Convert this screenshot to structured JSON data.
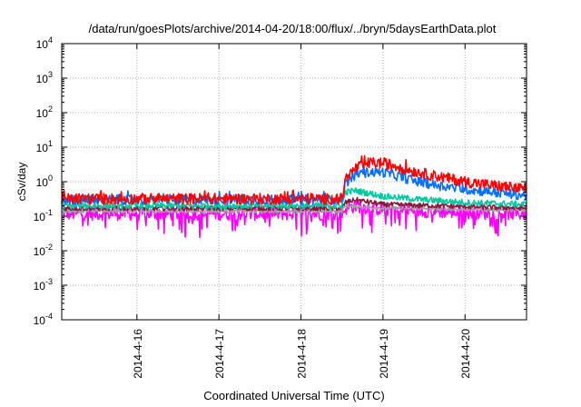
{
  "chart_data": {
    "type": "line",
    "title": "/data/run/goesPlots/archive/2014-04-20/18:00/flux/../bryn/5daysEarthData.plot",
    "xlabel": "Coordinated Universal Time (UTC)",
    "ylabel": "cSv/day",
    "yscale": "log",
    "ylim": [
      0.0001,
      10000
    ],
    "xlim": [
      "2014-04-15 02:00",
      "2014-04-20 18:00"
    ],
    "grid": true,
    "legend": "none",
    "y_ticks": [
      {
        "value": 0.0001,
        "base": "10",
        "exp": "-4"
      },
      {
        "value": 0.001,
        "base": "10",
        "exp": "-3"
      },
      {
        "value": 0.01,
        "base": "10",
        "exp": "-2"
      },
      {
        "value": 0.1,
        "base": "10",
        "exp": "-1"
      },
      {
        "value": 1,
        "base": "10",
        "exp": "0"
      },
      {
        "value": 10,
        "base": "10",
        "exp": "1"
      },
      {
        "value": 100,
        "base": "10",
        "exp": "2"
      },
      {
        "value": 1000,
        "base": "10",
        "exp": "3"
      },
      {
        "value": 10000,
        "base": "10",
        "exp": "4"
      }
    ],
    "x_ticks": [
      {
        "label": "2014-4-16",
        "value": "2014-04-16 00:00"
      },
      {
        "label": "2014-4-17",
        "value": "2014-04-17 00:00"
      },
      {
        "label": "2014-4-18",
        "value": "2014-04-18 00:00"
      },
      {
        "label": "2014-4-19",
        "value": "2014-04-19 00:00"
      },
      {
        "label": "2014-4-20",
        "value": "2014-04-20 00:00"
      }
    ],
    "event_time": "2014-04-18 13:00",
    "series": [
      {
        "color": "#ff0000",
        "x": [
          "2014-04-15 02:00",
          "2014-04-18 12:00",
          "2014-04-18 13:00",
          "2014-04-18 16:00",
          "2014-04-18 20:00",
          "2014-04-19 00:00",
          "2014-04-19 06:00",
          "2014-04-19 12:00",
          "2014-04-20 00:00",
          "2014-04-20 12:00",
          "2014-04-20 18:00"
        ],
        "values": [
          0.32,
          0.32,
          1.2,
          2.5,
          3.5,
          3.5,
          2.4,
          1.7,
          1.0,
          0.7,
          0.6
        ]
      },
      {
        "color": "#0070ff",
        "x": [
          "2014-04-15 02:00",
          "2014-04-18 12:00",
          "2014-04-18 13:00",
          "2014-04-18 16:00",
          "2014-04-18 20:00",
          "2014-04-19 00:00",
          "2014-04-19 06:00",
          "2014-04-19 12:00",
          "2014-04-20 00:00",
          "2014-04-20 12:00",
          "2014-04-20 18:00"
        ],
        "values": [
          0.3,
          0.3,
          0.9,
          1.6,
          1.9,
          1.9,
          1.3,
          0.9,
          0.6,
          0.45,
          0.4
        ]
      },
      {
        "color": "#00c8a0",
        "x": [
          "2014-04-15 02:00",
          "2014-04-18 12:00",
          "2014-04-18 13:00",
          "2014-04-18 16:00",
          "2014-04-19 00:00",
          "2014-04-19 12:00",
          "2014-04-20 00:00",
          "2014-04-20 18:00"
        ],
        "values": [
          0.2,
          0.2,
          0.5,
          0.55,
          0.38,
          0.3,
          0.25,
          0.22
        ]
      },
      {
        "color": "#8b1a3a",
        "x": [
          "2014-04-15 02:00",
          "2014-04-18 12:00",
          "2014-04-18 13:00",
          "2014-04-18 16:00",
          "2014-04-19 00:00",
          "2014-04-20 00:00",
          "2014-04-20 18:00"
        ],
        "values": [
          0.17,
          0.17,
          0.25,
          0.3,
          0.22,
          0.19,
          0.17
        ]
      },
      {
        "color": "#a0a0a0",
        "x": [
          "2014-04-15 02:00",
          "2014-04-18 12:00",
          "2014-04-18 13:00",
          "2014-04-19 00:00",
          "2014-04-20 18:00"
        ],
        "values": [
          0.14,
          0.14,
          0.2,
          0.17,
          0.15
        ]
      },
      {
        "color": "#ff00ff",
        "x": [
          "2014-04-15 02:00",
          "2014-04-18 12:00",
          "2014-04-18 13:00",
          "2014-04-18 16:00",
          "2014-04-19 00:00",
          "2014-04-20 00:00",
          "2014-04-20 18:00"
        ],
        "values": [
          0.12,
          0.12,
          0.17,
          0.2,
          0.16,
          0.13,
          0.12
        ]
      }
    ]
  }
}
